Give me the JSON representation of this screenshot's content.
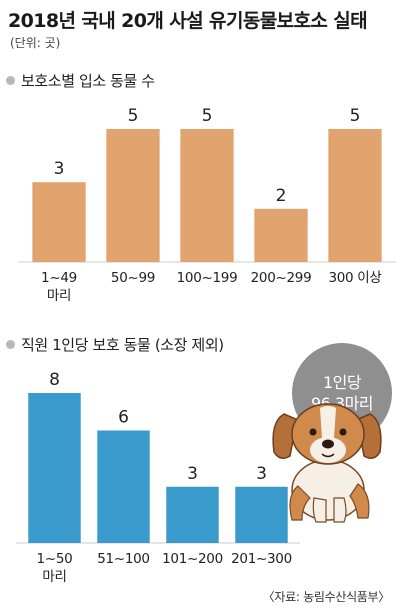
{
  "title": "2018년 국내 20개 사설 유기동물보호소 실태",
  "unit": "(단위: 곳)",
  "source": "〈자료: 농림수산식품부〉",
  "badge": {
    "line1": "1인당",
    "line2": "96.3마리"
  },
  "colors": {
    "chart1_bar": "#E2A46E",
    "chart2_bar": "#3A9ACB",
    "badge": "#8F8F8F",
    "bullet": "#B8B8B8"
  },
  "chart_data": [
    {
      "type": "bar",
      "title": "보호소별 입소 동물 수",
      "categories": [
        [
          "1~49",
          "마리"
        ],
        [
          "50~99"
        ],
        [
          "100~199"
        ],
        [
          "200~299"
        ],
        [
          "300 이상"
        ]
      ],
      "values": [
        3,
        5,
        5,
        2,
        5
      ],
      "ylim": [
        0,
        5
      ]
    },
    {
      "type": "bar",
      "title": "직원 1인당 보호 동물 (소장 제외)",
      "categories": [
        [
          "1~50",
          "마리"
        ],
        [
          "51~100"
        ],
        [
          "101~200"
        ],
        [
          "201~300"
        ]
      ],
      "values": [
        8,
        6,
        3,
        3
      ],
      "ylim": [
        0,
        8
      ]
    }
  ]
}
